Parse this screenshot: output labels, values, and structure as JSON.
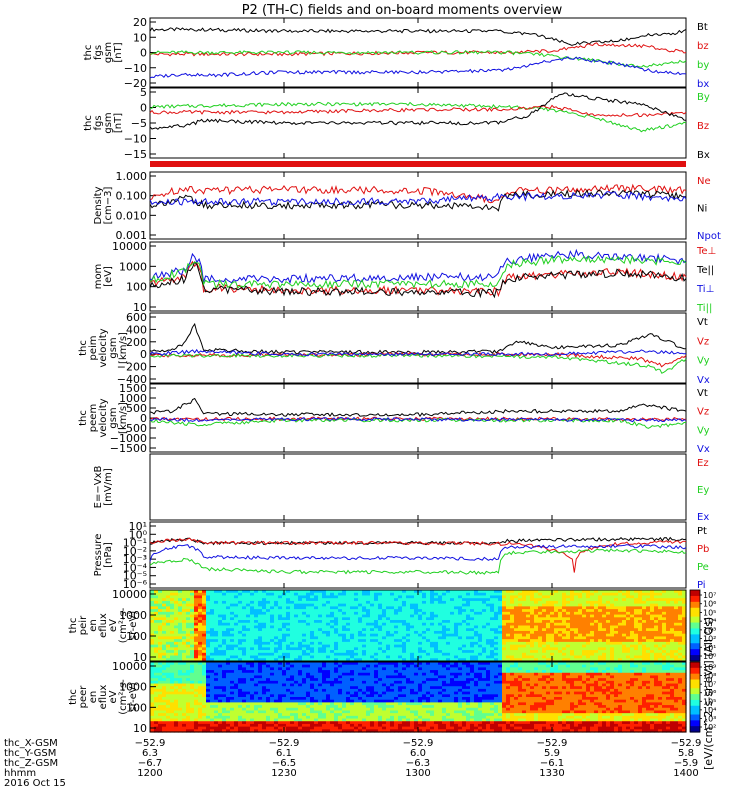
{
  "title": "P2 (TH-C) fields and on-board moments overview",
  "colors": {
    "black": "#000000",
    "red": "#e01010",
    "green": "#20d020",
    "blue": "#1010e0",
    "magenta": "#d020d0"
  },
  "chart_data": [
    {
      "type": "line",
      "ylabel": [
        "thc",
        "fgs",
        "gsm",
        "[nT]"
      ],
      "yticks": [
        "20",
        "10",
        "0",
        "−10",
        "−20"
      ],
      "ylim": [
        -20,
        22
      ],
      "series": [
        {
          "name": "Bt",
          "color": "black",
          "x": [
            1200,
            1210,
            1230,
            1300,
            1318,
            1326,
            1334,
            1345,
            1352,
            1358,
            1400
          ],
          "y": [
            15,
            15,
            14,
            14,
            14,
            12,
            6,
            8,
            12,
            13,
            15
          ]
        },
        {
          "name": "bz",
          "color": "red",
          "x": [
            1200,
            1230,
            1300,
            1320,
            1330,
            1340,
            1350,
            1400
          ],
          "y": [
            0,
            0,
            1,
            1,
            2,
            6,
            5,
            1
          ]
        },
        {
          "name": "by",
          "color": "green",
          "x": [
            1200,
            1230,
            1300,
            1320,
            1330,
            1340,
            1350,
            1400
          ],
          "y": [
            1,
            1,
            1,
            1,
            -1,
            -4,
            -8,
            -4
          ]
        },
        {
          "name": "bx",
          "color": "blue",
          "x": [
            1200,
            1208,
            1212,
            1230,
            1300,
            1318,
            1326,
            1334,
            1345,
            1352,
            1400
          ],
          "y": [
            -14,
            -12,
            -13,
            -11,
            -11,
            -10,
            -6,
            -2,
            -6,
            -10,
            -12
          ]
        }
      ]
    },
    {
      "type": "line",
      "ylabel": [
        "thc",
        "fgs",
        "gsm",
        "[nT]"
      ],
      "yticks": [
        "5",
        "0",
        "−5",
        "−10",
        "−15"
      ],
      "ylim": [
        -18,
        8
      ],
      "series": [
        {
          "name": "By",
          "color": "green",
          "x": [
            1200,
            1230,
            1300,
            1320,
            1330,
            1340,
            1350,
            1400
          ],
          "y": [
            1,
            2,
            2,
            1,
            0,
            -3,
            -8,
            -5
          ]
        },
        {
          "name": "Bz",
          "color": "red",
          "x": [
            1200,
            1230,
            1300,
            1320,
            1330,
            1340,
            1350,
            1400
          ],
          "y": [
            -1,
            -1,
            0,
            0,
            1,
            -2,
            -2,
            -1
          ]
        },
        {
          "name": "Bx",
          "color": "black",
          "x": [
            1200,
            1208,
            1212,
            1230,
            1300,
            1318,
            1325,
            1332,
            1340,
            1350,
            1400
          ],
          "y": [
            -7,
            -6,
            -4,
            -5,
            -5,
            -5,
            -2,
            6,
            4,
            2,
            -4
          ]
        }
      ]
    },
    {
      "type": "line",
      "ylabel": [
        "Density",
        "[cm−3]"
      ],
      "yticks": [
        "1.000",
        "0.100",
        "0.010",
        "0.001"
      ],
      "yscale": "log",
      "ylim": [
        0.001,
        1.5
      ],
      "series": [
        {
          "name": "Ne",
          "color": "red",
          "x": [
            1200,
            1208,
            1212,
            1230,
            1300,
            1318,
            1320,
            1345,
            1400
          ],
          "y": [
            0.07,
            0.25,
            0.2,
            0.22,
            0.2,
            0.05,
            0.18,
            0.25,
            0.2
          ]
        },
        {
          "name": "Ni",
          "color": "black",
          "x": [
            1200,
            1208,
            1212,
            1230,
            1300,
            1318,
            1320,
            1345,
            1400
          ],
          "y": [
            0.04,
            0.08,
            0.04,
            0.04,
            0.04,
            0.03,
            0.12,
            0.15,
            0.1
          ]
        },
        {
          "name": "Npot",
          "color": "blue",
          "x": [
            1200,
            1212,
            1230,
            1300,
            1320,
            1345,
            1400
          ],
          "y": [
            0.05,
            0.06,
            0.06,
            0.06,
            0.1,
            0.12,
            0.08
          ]
        }
      ]
    },
    {
      "type": "line",
      "ylabel": [
        "mom",
        "[eV]"
      ],
      "yticks": [
        "10000",
        "1000",
        "100",
        "10"
      ],
      "yscale": "log",
      "ylim": [
        10,
        10000
      ],
      "series": [
        {
          "name": "Te⊥",
          "color": "red",
          "x": [
            1200,
            1208,
            1210,
            1212,
            1230,
            1300,
            1318,
            1320,
            1345,
            1400
          ],
          "y": [
            150,
            300,
            1200,
            100,
            80,
            80,
            70,
            300,
            500,
            300
          ]
        },
        {
          "name": "Te||",
          "color": "black",
          "x": [
            1200,
            1208,
            1210,
            1212,
            1230,
            1300,
            1318,
            1320,
            1345,
            1400
          ],
          "y": [
            120,
            250,
            1000,
            90,
            70,
            70,
            60,
            260,
            450,
            260
          ]
        },
        {
          "name": "Ti⊥",
          "color": "blue",
          "x": [
            1200,
            1208,
            1210,
            1212,
            1230,
            1300,
            1318,
            1320,
            1335,
            1400
          ],
          "y": [
            250,
            600,
            2500,
            250,
            250,
            300,
            300,
            1500,
            3000,
            1500
          ]
        },
        {
          "name": "Ti||",
          "color": "green",
          "x": [
            1200,
            1208,
            1210,
            1212,
            1230,
            1300,
            1318,
            1320,
            1335,
            1400
          ],
          "y": [
            200,
            500,
            2000,
            150,
            150,
            150,
            150,
            1000,
            2000,
            1200
          ]
        }
      ]
    },
    {
      "type": "line",
      "ylabel": [
        "thc",
        "peim",
        "velocity",
        "gsm",
        "[km/s]"
      ],
      "yticks": [
        "600",
        "400",
        "200",
        "0",
        "−200",
        "−400"
      ],
      "ylim": [
        -400,
        620
      ],
      "series": [
        {
          "name": "Vt",
          "color": "black",
          "x": [
            1200,
            1205,
            1208,
            1210,
            1212,
            1230,
            1300,
            1318,
            1322,
            1330,
            1345,
            1352,
            1356,
            1400
          ],
          "y": [
            60,
            80,
            200,
            450,
            80,
            50,
            50,
            60,
            200,
            120,
            150,
            300,
            200,
            100
          ]
        },
        {
          "name": "Vz",
          "color": "red",
          "x": [
            1200,
            1230,
            1300,
            1330,
            1350,
            1355,
            1400
          ],
          "y": [
            0,
            10,
            20,
            20,
            -50,
            -150,
            0
          ]
        },
        {
          "name": "Vy",
          "color": "green",
          "x": [
            1200,
            1230,
            1300,
            1330,
            1352,
            1355,
            1400
          ],
          "y": [
            0,
            0,
            0,
            -20,
            -150,
            -250,
            -50
          ]
        },
        {
          "name": "Vx",
          "color": "blue",
          "x": [
            1200,
            1210,
            1230,
            1300,
            1330,
            1350,
            1400
          ],
          "y": [
            20,
            60,
            20,
            20,
            20,
            60,
            30
          ]
        }
      ]
    },
    {
      "type": "line",
      "ylabel": [
        "thc",
        "peem",
        "velocity",
        "gsm",
        "[km/s]"
      ],
      "yticks": [
        "1500",
        "1000",
        "500",
        "0",
        "−500",
        "−1000",
        "−1500"
      ],
      "ylim": [
        -1500,
        1500
      ],
      "series": [
        {
          "name": "Vt",
          "color": "black",
          "x": [
            1200,
            1205,
            1210,
            1212,
            1230,
            1300,
            1320,
            1345,
            1350,
            1400
          ],
          "y": [
            250,
            300,
            800,
            200,
            150,
            150,
            300,
            300,
            600,
            300
          ]
        },
        {
          "name": "Vz",
          "color": "red",
          "x": [
            1200,
            1230,
            1300,
            1345,
            1400
          ],
          "y": [
            -50,
            -40,
            -30,
            -50,
            -50
          ]
        },
        {
          "name": "Vy",
          "color": "green",
          "x": [
            1200,
            1210,
            1230,
            1300,
            1345,
            1352,
            1400
          ],
          "y": [
            -100,
            -300,
            -100,
            -100,
            -100,
            -400,
            -200
          ]
        },
        {
          "name": "Vx",
          "color": "blue",
          "x": [
            1200,
            1210,
            1230,
            1300,
            1345,
            1400
          ],
          "y": [
            -50,
            -100,
            -50,
            -60,
            -80,
            -100
          ]
        }
      ]
    },
    {
      "type": "line",
      "ylabel": [
        "E=−VxB",
        "[mV/m]"
      ],
      "yticks": [],
      "ylim": [
        -1,
        1
      ],
      "series": [
        {
          "name": "Ez",
          "color": "red",
          "x": [],
          "y": []
        },
        {
          "name": "Ey",
          "color": "green",
          "x": [],
          "y": []
        },
        {
          "name": "Ex",
          "color": "blue",
          "x": [],
          "y": []
        }
      ]
    },
    {
      "type": "line",
      "ylabel": [
        "Pressure",
        "[nPa]"
      ],
      "yticks": [
        "10¹",
        "10⁰",
        "10⁻¹",
        "10⁻²",
        "10⁻³",
        "10⁻⁴",
        "10⁻⁵",
        "10⁻⁶"
      ],
      "yscale": "log",
      "ylim": [
        1e-06,
        10
      ],
      "series": [
        {
          "name": "Pt",
          "color": "black",
          "x": [
            1200,
            1208,
            1212,
            1300,
            1318,
            1320,
            1345,
            1400
          ],
          "y": [
            0.06,
            0.15,
            0.06,
            0.06,
            0.05,
            0.1,
            0.15,
            0.15
          ]
        },
        {
          "name": "Pb",
          "color": "red",
          "x": [
            1200,
            1208,
            1212,
            1300,
            1318,
            1320,
            1330,
            1335,
            1338,
            1345,
            1400
          ],
          "y": [
            0.06,
            0.15,
            0.06,
            0.06,
            0.05,
            0.05,
            0.01,
            3e-05,
            0.01,
            0.05,
            0.08
          ]
        },
        {
          "name": "Pe",
          "color": "green",
          "x": [
            1200,
            1208,
            1212,
            1230,
            1300,
            1318,
            1320,
            1345,
            1400
          ],
          "y": [
            0.0003,
            0.001,
            0.0001,
            5e-05,
            5e-05,
            4e-05,
            0.005,
            0.01,
            0.006
          ]
        },
        {
          "name": "Pi",
          "color": "blue",
          "x": [
            1200,
            1208,
            1212,
            1230,
            1300,
            1318,
            1320,
            1345,
            1400
          ],
          "y": [
            0.001,
            0.03,
            0.002,
            0.0015,
            0.0015,
            0.0012,
            0.02,
            0.03,
            0.02
          ]
        }
      ]
    },
    {
      "type": "heatmap",
      "ylabel": [
        "thc",
        "peir",
        "en",
        "eflux",
        "eV",
        "(cm²-s-",
        "sr-eV)"
      ],
      "yticks": [
        "10000",
        "1000",
        "100",
        "10"
      ],
      "yscale": "log",
      "ylim": [
        7,
        25000
      ],
      "colorbar_label": "[eV/(cm^2-s-sr-eV)]",
      "colorbar_ticks": [
        "10⁷",
        "10⁶",
        "10⁵",
        "10⁴",
        "10³",
        "10²",
        "10¹",
        "10⁰"
      ]
    },
    {
      "type": "heatmap",
      "ylabel": [
        "thc",
        "peer",
        "en",
        "eflux",
        "eV",
        "(cm²-s-",
        "sr-eV)"
      ],
      "yticks": [
        "10000",
        "1000",
        "100",
        "10"
      ],
      "yscale": "log",
      "ylim": [
        7,
        25000
      ],
      "colorbar_label": "[eV/(cm^2-s-sr-eV)]",
      "colorbar_ticks": [
        "10⁹",
        "10⁸",
        "10⁷",
        "10⁶",
        "10⁵",
        "10⁴",
        "10³",
        "10²"
      ]
    }
  ],
  "side_label": "[eV/(cm^2-s-sr-eV)] (All Qs)",
  "time_axis": {
    "rows": [
      {
        "label": "thc_X-GSM",
        "values": [
          "−52.9",
          "−52.9",
          "−52.9",
          "−52.9",
          "−52.9"
        ]
      },
      {
        "label": "thc_Y-GSM",
        "values": [
          "6.3",
          "6.1",
          "6.0",
          "5.9",
          "5.8"
        ]
      },
      {
        "label": "thc_Z-GSM",
        "values": [
          "−6.7",
          "−6.5",
          "−6.3",
          "−6.1",
          "−5.9"
        ]
      },
      {
        "label": "hhmm",
        "values": [
          "1200",
          "1230",
          "1300",
          "1330",
          "1400"
        ]
      }
    ],
    "date": "2016 Oct 15"
  }
}
